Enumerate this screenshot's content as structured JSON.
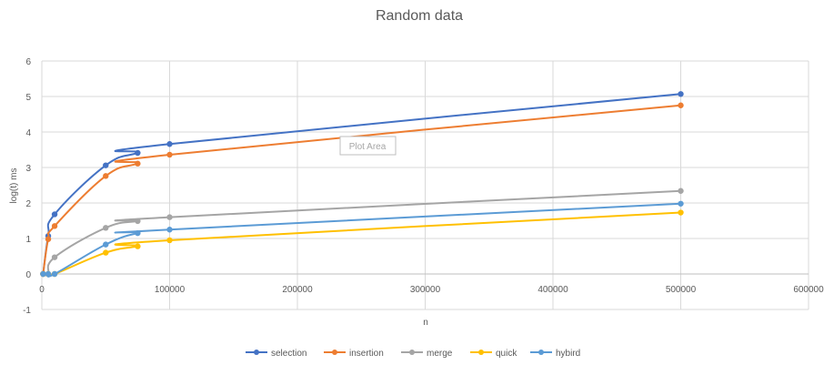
{
  "chart_data": {
    "type": "line",
    "title": "Random data",
    "xlabel": "n",
    "ylabel": "log(t)   ms",
    "xlim": [
      0,
      600000
    ],
    "ylim": [
      -1,
      6
    ],
    "x_ticks": [
      0,
      100000,
      200000,
      300000,
      400000,
      500000,
      600000
    ],
    "y_ticks": [
      -1,
      0,
      1,
      2,
      3,
      4,
      5,
      6
    ],
    "grid": true,
    "legend_position": "bottom",
    "tooltip": "Plot Area",
    "series": [
      {
        "name": "selection",
        "color": "#4472C4",
        "points": [
          [
            1000,
            0
          ],
          [
            5000,
            1.07
          ],
          [
            10000,
            1.68
          ],
          [
            50000,
            3.06
          ],
          [
            75000,
            3.41
          ],
          [
            100000,
            3.66
          ],
          [
            500000,
            5.07
          ]
        ]
      },
      {
        "name": "insertion",
        "color": "#ED7D31",
        "points": [
          [
            1000,
            0
          ],
          [
            5000,
            0.98
          ],
          [
            10000,
            1.35
          ],
          [
            50000,
            2.76
          ],
          [
            75000,
            3.11
          ],
          [
            100000,
            3.36
          ],
          [
            500000,
            4.75
          ]
        ]
      },
      {
        "name": "merge",
        "color": "#A5A5A5",
        "points": [
          [
            1000,
            0
          ],
          [
            5000,
            0
          ],
          [
            10000,
            0.47
          ],
          [
            50000,
            1.3
          ],
          [
            75000,
            1.49
          ],
          [
            100000,
            1.6
          ],
          [
            500000,
            2.34
          ]
        ]
      },
      {
        "name": "quick",
        "color": "#FFC000",
        "points": [
          [
            1000,
            0
          ],
          [
            5000,
            0
          ],
          [
            10000,
            0
          ],
          [
            50000,
            0.6
          ],
          [
            75000,
            0.78
          ],
          [
            100000,
            0.95
          ],
          [
            500000,
            1.73
          ]
        ]
      },
      {
        "name": "hybird",
        "color": "#5B9BD5",
        "points": [
          [
            1000,
            0
          ],
          [
            5000,
            0
          ],
          [
            10000,
            0
          ],
          [
            50000,
            0.83
          ],
          [
            75000,
            1.15
          ],
          [
            100000,
            1.25
          ],
          [
            500000,
            1.98
          ]
        ]
      }
    ]
  }
}
